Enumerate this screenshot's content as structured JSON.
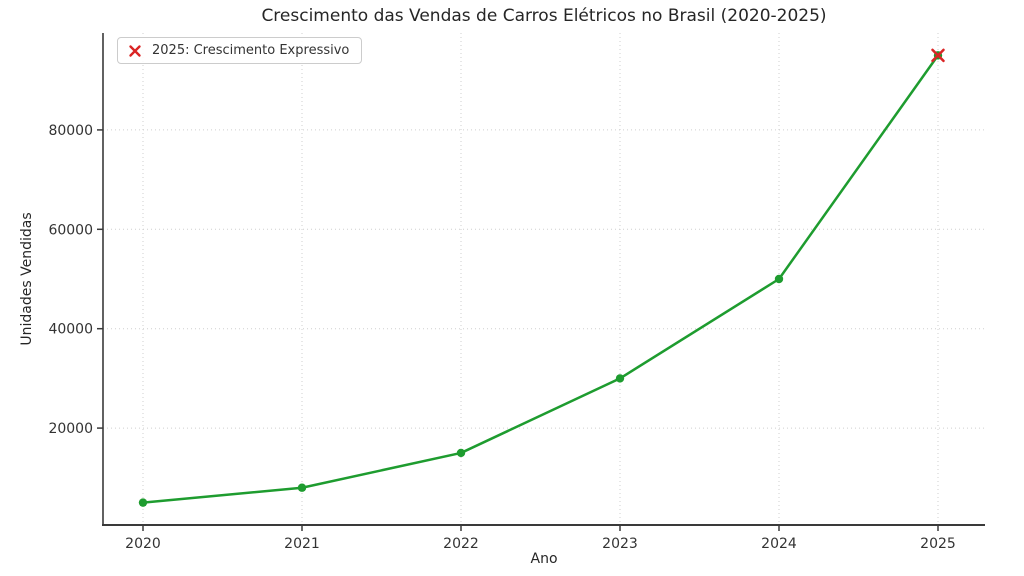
{
  "chart_data": {
    "type": "line",
    "title": "Crescimento das Vendas de Carros Elétricos no Brasil (2020-2025)",
    "xlabel": "Ano",
    "ylabel": "Unidades Vendidas",
    "categories": [
      "2020",
      "2021",
      "2022",
      "2023",
      "2024",
      "2025"
    ],
    "series": [
      {
        "name": "Unidades Vendidas",
        "values": [
          5000,
          8000,
          15000,
          30000,
          50000,
          95000
        ],
        "color": "#1e9c2f",
        "marker": "circle"
      }
    ],
    "highlight": {
      "category": "2025",
      "value": 95000,
      "marker": "x",
      "color": "#da2525",
      "label": "2025: Crescimento Expressivo"
    },
    "legend": {
      "position": "upper-left",
      "entries": [
        "2025: Crescimento Expressivo"
      ]
    },
    "y_ticks": [
      20000,
      40000,
      60000,
      80000
    ],
    "ylim": [
      500,
      99500
    ],
    "grid": "dotted",
    "grid_color": "#cfcfcf",
    "axis_color": "#3a3a3a",
    "tick_text_color": "#333333"
  }
}
